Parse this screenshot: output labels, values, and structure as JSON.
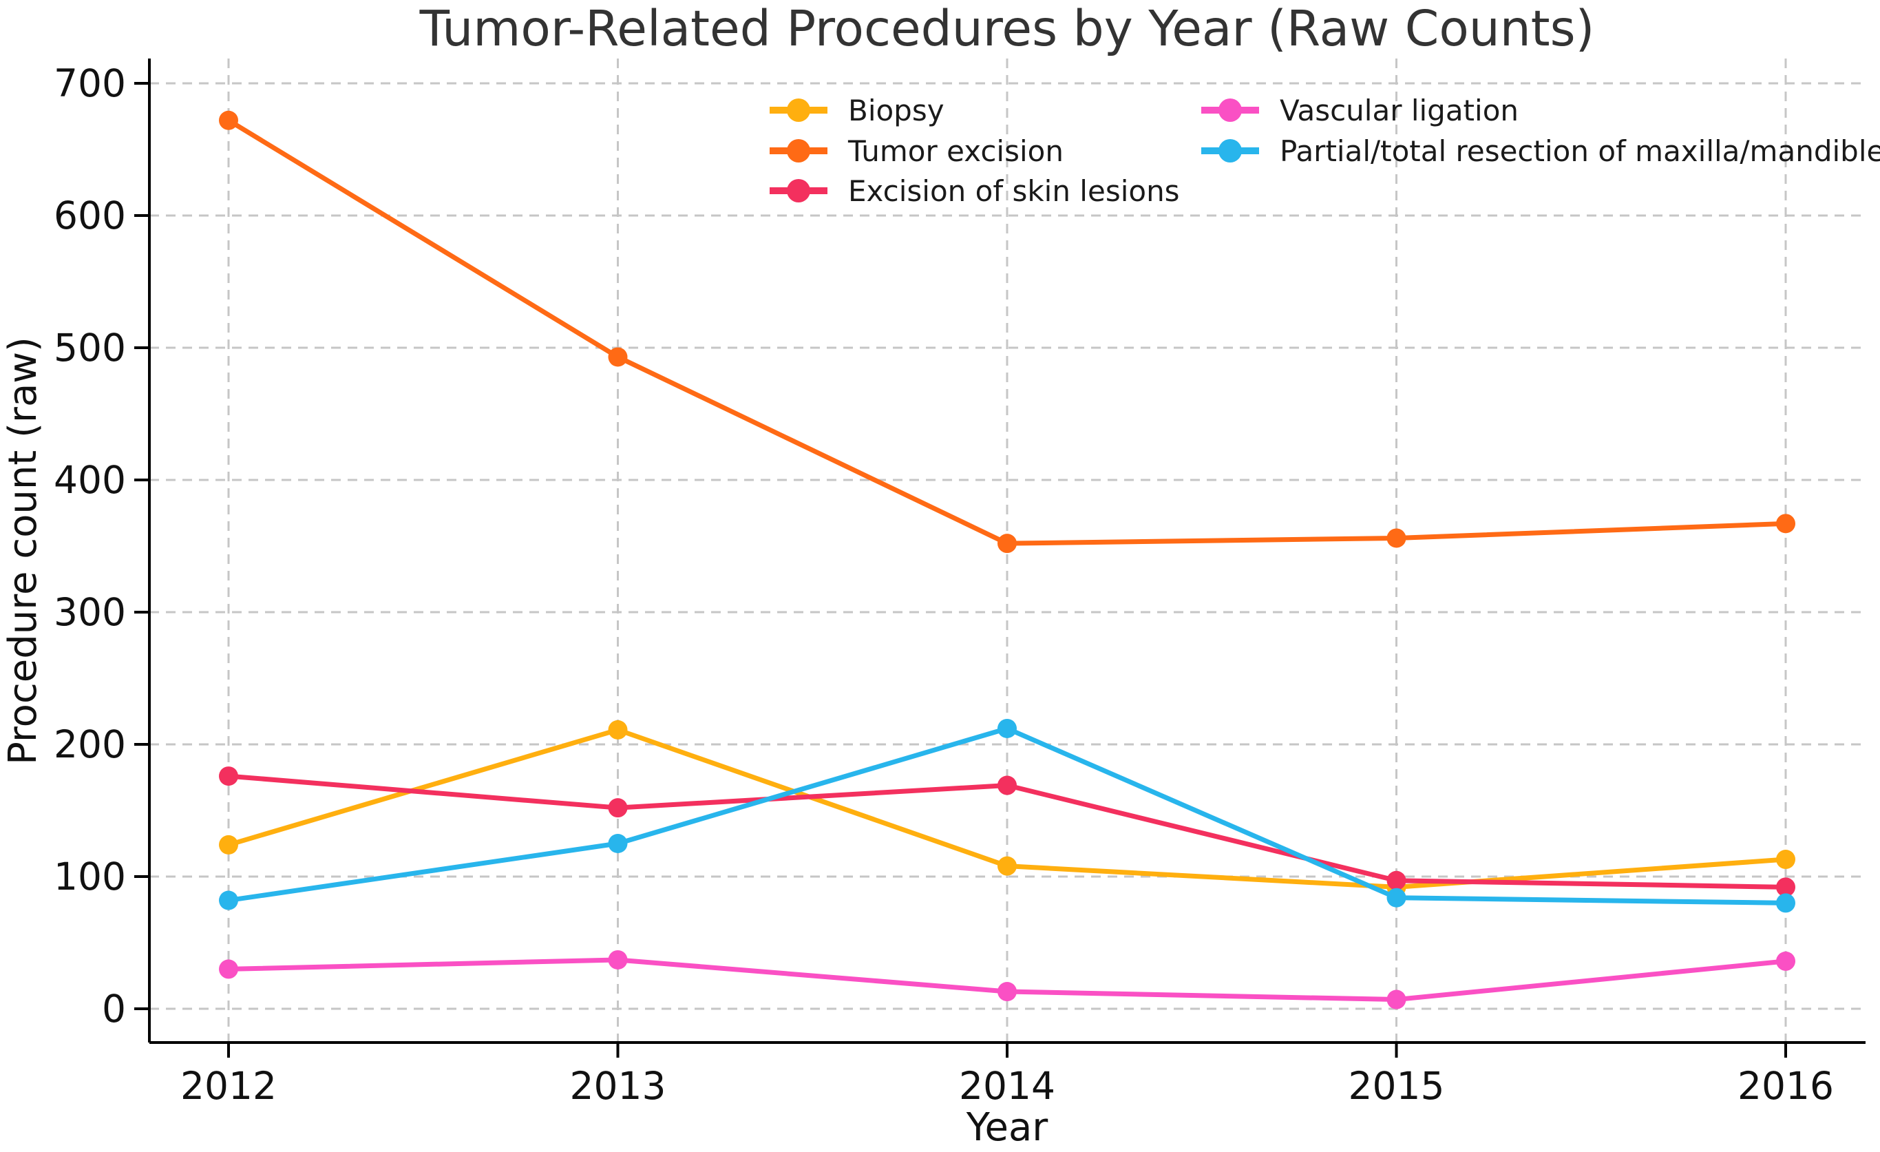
{
  "title": "Tumor-Related Procedures by Year (Raw Counts)",
  "xlabel": "Year",
  "ylabel": "Procedure count (raw)",
  "chart_data": {
    "type": "line",
    "x": [
      2012,
      2013,
      2014,
      2015,
      2016
    ],
    "series": [
      {
        "name": "Biopsy",
        "color": "#FFAF0F",
        "values": [
          124,
          211,
          108,
          92,
          113
        ]
      },
      {
        "name": "Tumor excision",
        "color": "#FF6A15",
        "values": [
          672,
          493,
          352,
          356,
          367
        ]
      },
      {
        "name": "Excision of skin lesions",
        "color": "#F3305E",
        "values": [
          176,
          152,
          169,
          97,
          92
        ]
      },
      {
        "name": "Vascular ligation",
        "color": "#FA50C4",
        "values": [
          30,
          37,
          13,
          7,
          36
        ]
      },
      {
        "name": "Partial/total resection of maxilla/mandible",
        "color": "#28B5EC",
        "values": [
          82,
          125,
          212,
          84,
          80
        ]
      }
    ],
    "yticks": [
      0,
      100,
      200,
      300,
      400,
      500,
      600,
      700
    ],
    "xticks": [
      "2012",
      "2013",
      "2014",
      "2015",
      "2016"
    ],
    "ylim": [
      -25,
      719
    ],
    "xlim": [
      2011.8,
      2016.2
    ],
    "grid": true,
    "grid_style": "dashed",
    "legend_position": "upper center, two columns, no frame",
    "legend_columns": [
      [
        0,
        1,
        2
      ],
      [
        3,
        4
      ]
    ],
    "colors": {
      "grid": "#c6c6c6",
      "axis": "#000000",
      "background": "#ffffff"
    }
  }
}
